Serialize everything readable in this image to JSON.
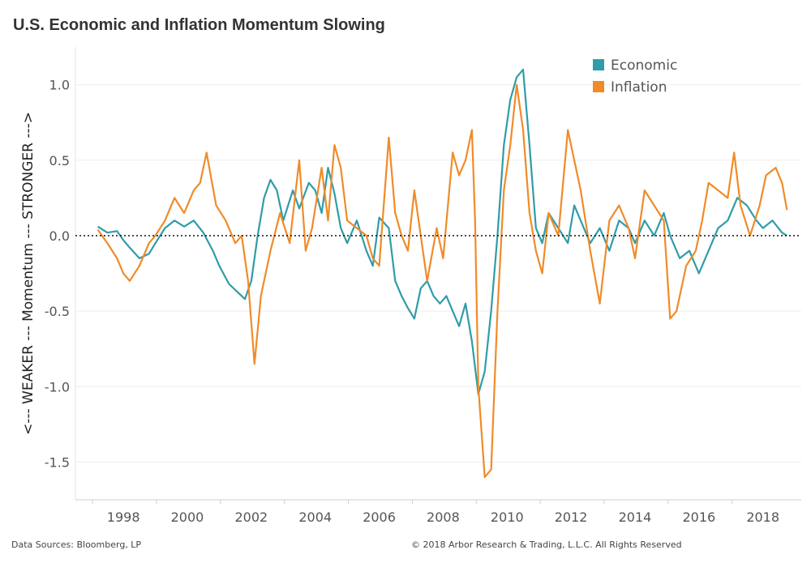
{
  "title": "U.S. Economic and Inflation Momentum Slowing",
  "footer": {
    "source": "Data Sources: Bloomberg, LP",
    "copyright": "© 2018 Arbor Research & Trading, L.L.C. All Rights Reserved"
  },
  "colors": {
    "economic": "#2f9caa",
    "inflation": "#f08b28"
  },
  "chart_data": {
    "type": "line",
    "title": "U.S. Economic and Inflation Momentum Slowing",
    "ylabel": "<--- WEAKER --- Momentum --- STRONGER --->",
    "xlabel": "",
    "ylim": [
      -1.75,
      1.25
    ],
    "xlim": [
      1996.5,
      2019.2
    ],
    "yticks": [
      1.0,
      0.5,
      0.0,
      -0.5,
      -1.0,
      -1.5
    ],
    "ytick_labels": [
      "1.0",
      "0.5",
      "0.0",
      "-0.5",
      "-1.0",
      "-1.5"
    ],
    "xticks": [
      1998,
      2000,
      2002,
      2004,
      2006,
      2008,
      2010,
      2012,
      2014,
      2016,
      2018
    ],
    "xtick_labels": [
      "1998",
      "2000",
      "2002",
      "2004",
      "2006",
      "2008",
      "2010",
      "2012",
      "2014",
      "2016",
      "2018"
    ],
    "reference_line": 0.0,
    "legend": {
      "placement": "top-right"
    },
    "series": [
      {
        "name": "Economic",
        "x": [
          1997.2,
          1997.5,
          1997.8,
          1998.0,
          1998.2,
          1998.5,
          1998.8,
          1999.0,
          1999.3,
          1999.6,
          1999.9,
          2000.2,
          2000.5,
          2000.8,
          2001.0,
          2001.3,
          2001.6,
          2001.8,
          2002.0,
          2002.2,
          2002.4,
          2002.6,
          2002.8,
          2003.0,
          2003.3,
          2003.5,
          2003.8,
          2004.0,
          2004.2,
          2004.4,
          2004.6,
          2004.8,
          2005.0,
          2005.3,
          2005.6,
          2005.8,
          2006.0,
          2006.3,
          2006.5,
          2006.7,
          2006.9,
          2007.1,
          2007.3,
          2007.5,
          2007.7,
          2007.9,
          2008.1,
          2008.3,
          2008.5,
          2008.7,
          2008.9,
          2009.1,
          2009.3,
          2009.5,
          2009.7,
          2009.9,
          2010.1,
          2010.3,
          2010.5,
          2010.7,
          2010.9,
          2011.1,
          2011.3,
          2011.6,
          2011.9,
          2012.1,
          2012.3,
          2012.6,
          2012.9,
          2013.2,
          2013.5,
          2013.8,
          2014.0,
          2014.3,
          2014.6,
          2014.9,
          2015.1,
          2015.4,
          2015.7,
          2016.0,
          2016.3,
          2016.6,
          2016.9,
          2017.2,
          2017.5,
          2017.8,
          2018.0,
          2018.3,
          2018.6,
          2018.75
        ],
        "values": [
          0.06,
          0.02,
          0.03,
          -0.03,
          -0.08,
          -0.15,
          -0.12,
          -0.05,
          0.05,
          0.1,
          0.06,
          0.1,
          0.02,
          -0.1,
          -0.2,
          -0.32,
          -0.38,
          -0.42,
          -0.3,
          0.0,
          0.25,
          0.37,
          0.3,
          0.1,
          0.3,
          0.18,
          0.35,
          0.3,
          0.15,
          0.45,
          0.28,
          0.05,
          -0.05,
          0.1,
          -0.1,
          -0.2,
          0.12,
          0.05,
          -0.3,
          -0.4,
          -0.48,
          -0.55,
          -0.35,
          -0.3,
          -0.4,
          -0.45,
          -0.4,
          -0.5,
          -0.6,
          -0.45,
          -0.7,
          -1.05,
          -0.9,
          -0.5,
          0.0,
          0.6,
          0.9,
          1.05,
          1.1,
          0.6,
          0.05,
          -0.05,
          0.15,
          0.05,
          -0.05,
          0.2,
          0.1,
          -0.05,
          0.05,
          -0.1,
          0.1,
          0.05,
          -0.05,
          0.1,
          0.0,
          0.15,
          0.0,
          -0.15,
          -0.1,
          -0.25,
          -0.1,
          0.05,
          0.1,
          0.25,
          0.2,
          0.1,
          0.05,
          0.1,
          0.02,
          0.0
        ]
      },
      {
        "name": "Inflation",
        "x": [
          1997.2,
          1997.5,
          1997.8,
          1998.0,
          1998.2,
          1998.5,
          1998.8,
          1999.0,
          1999.3,
          1999.6,
          1999.9,
          2000.2,
          2000.4,
          2000.6,
          2000.9,
          2001.2,
          2001.5,
          2001.7,
          2001.9,
          2002.1,
          2002.3,
          2002.6,
          2002.9,
          2003.2,
          2003.5,
          2003.7,
          2003.9,
          2004.2,
          2004.4,
          2004.6,
          2004.8,
          2005.0,
          2005.3,
          2005.6,
          2005.8,
          2006.0,
          2006.3,
          2006.5,
          2006.7,
          2006.9,
          2007.1,
          2007.3,
          2007.5,
          2007.8,
          2008.0,
          2008.3,
          2008.5,
          2008.7,
          2008.9,
          2009.0,
          2009.1,
          2009.3,
          2009.5,
          2009.7,
          2009.9,
          2010.1,
          2010.3,
          2010.5,
          2010.7,
          2010.9,
          2011.1,
          2011.3,
          2011.6,
          2011.9,
          2012.1,
          2012.3,
          2012.6,
          2012.9,
          2013.2,
          2013.5,
          2013.8,
          2014.0,
          2014.3,
          2014.6,
          2014.9,
          2015.1,
          2015.3,
          2015.6,
          2015.9,
          2016.1,
          2016.3,
          2016.6,
          2016.9,
          2017.1,
          2017.3,
          2017.6,
          2017.9,
          2018.1,
          2018.4,
          2018.6,
          2018.75
        ],
        "values": [
          0.04,
          -0.05,
          -0.15,
          -0.25,
          -0.3,
          -0.2,
          -0.05,
          0.0,
          0.1,
          0.25,
          0.15,
          0.3,
          0.35,
          0.55,
          0.2,
          0.1,
          -0.05,
          0.0,
          -0.3,
          -0.85,
          -0.4,
          -0.1,
          0.15,
          -0.05,
          0.5,
          -0.1,
          0.05,
          0.45,
          0.1,
          0.6,
          0.45,
          0.1,
          0.05,
          0.0,
          -0.15,
          -0.2,
          0.65,
          0.15,
          0.0,
          -0.1,
          0.3,
          0.0,
          -0.3,
          0.05,
          -0.15,
          0.55,
          0.4,
          0.5,
          0.7,
          0.1,
          -1.0,
          -1.6,
          -1.55,
          -0.5,
          0.3,
          0.6,
          1.0,
          0.7,
          0.15,
          -0.1,
          -0.25,
          0.15,
          0.0,
          0.7,
          0.5,
          0.3,
          -0.1,
          -0.45,
          0.1,
          0.2,
          0.05,
          -0.15,
          0.3,
          0.2,
          0.1,
          -0.55,
          -0.5,
          -0.2,
          -0.1,
          0.1,
          0.35,
          0.3,
          0.25,
          0.55,
          0.2,
          0.0,
          0.2,
          0.4,
          0.45,
          0.35,
          0.17
        ]
      }
    ]
  }
}
